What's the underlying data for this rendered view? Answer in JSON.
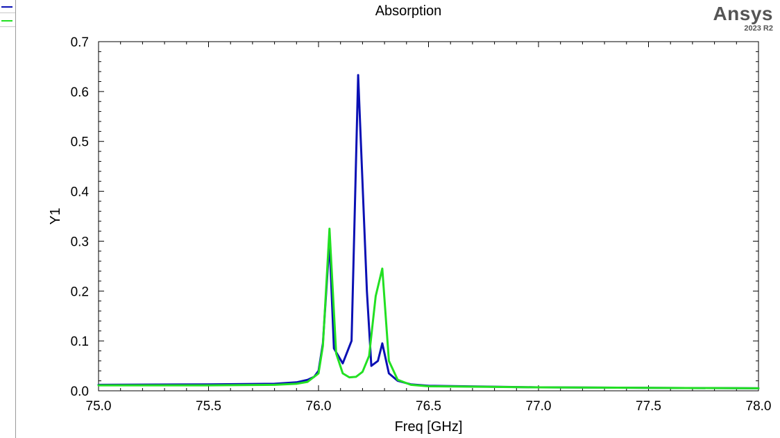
{
  "title": "Absorption",
  "brand": {
    "name": "Ansys",
    "version": "2023 R2"
  },
  "legend": [
    {
      "name": "",
      "color": "#0a10b4"
    },
    {
      "name": "",
      "color": "#22e022"
    }
  ],
  "chart_data": {
    "type": "line",
    "title": "Absorption",
    "xlabel": "Freq [GHz]",
    "ylabel": "Y1",
    "xlim": [
      75.0,
      78.0
    ],
    "ylim": [
      0.0,
      0.7
    ],
    "x_ticks": [
      "75.0",
      "75.5",
      "76.0",
      "76.5",
      "77.0",
      "77.5",
      "78.0"
    ],
    "y_ticks": [
      "0.0",
      "0.1",
      "0.2",
      "0.3",
      "0.4",
      "0.5",
      "0.6",
      "0.7"
    ],
    "grid": false,
    "series": [
      {
        "color": "#0a10b4",
        "points": [
          [
            75.0,
            0.012
          ],
          [
            75.5,
            0.013
          ],
          [
            75.8,
            0.014
          ],
          [
            75.9,
            0.017
          ],
          [
            75.95,
            0.022
          ],
          [
            75.98,
            0.028
          ],
          [
            76.0,
            0.04
          ],
          [
            76.02,
            0.095
          ],
          [
            76.05,
            0.3
          ],
          [
            76.07,
            0.085
          ],
          [
            76.11,
            0.055
          ],
          [
            76.15,
            0.1
          ],
          [
            76.18,
            0.633
          ],
          [
            76.22,
            0.2
          ],
          [
            76.24,
            0.05
          ],
          [
            76.27,
            0.06
          ],
          [
            76.29,
            0.095
          ],
          [
            76.32,
            0.035
          ],
          [
            76.36,
            0.02
          ],
          [
            76.42,
            0.013
          ],
          [
            76.5,
            0.01
          ],
          [
            77.0,
            0.007
          ],
          [
            77.5,
            0.006
          ],
          [
            78.0,
            0.005
          ]
        ]
      },
      {
        "color": "#22e022",
        "points": [
          [
            75.0,
            0.011
          ],
          [
            75.5,
            0.011
          ],
          [
            75.8,
            0.012
          ],
          [
            75.9,
            0.014
          ],
          [
            75.95,
            0.018
          ],
          [
            76.0,
            0.035
          ],
          [
            76.02,
            0.09
          ],
          [
            76.05,
            0.325
          ],
          [
            76.08,
            0.075
          ],
          [
            76.11,
            0.035
          ],
          [
            76.14,
            0.027
          ],
          [
            76.17,
            0.028
          ],
          [
            76.2,
            0.038
          ],
          [
            76.23,
            0.07
          ],
          [
            76.26,
            0.19
          ],
          [
            76.29,
            0.245
          ],
          [
            76.32,
            0.06
          ],
          [
            76.36,
            0.022
          ],
          [
            76.42,
            0.012
          ],
          [
            76.5,
            0.009
          ],
          [
            77.0,
            0.007
          ],
          [
            77.5,
            0.006
          ],
          [
            78.0,
            0.005
          ]
        ]
      }
    ]
  }
}
